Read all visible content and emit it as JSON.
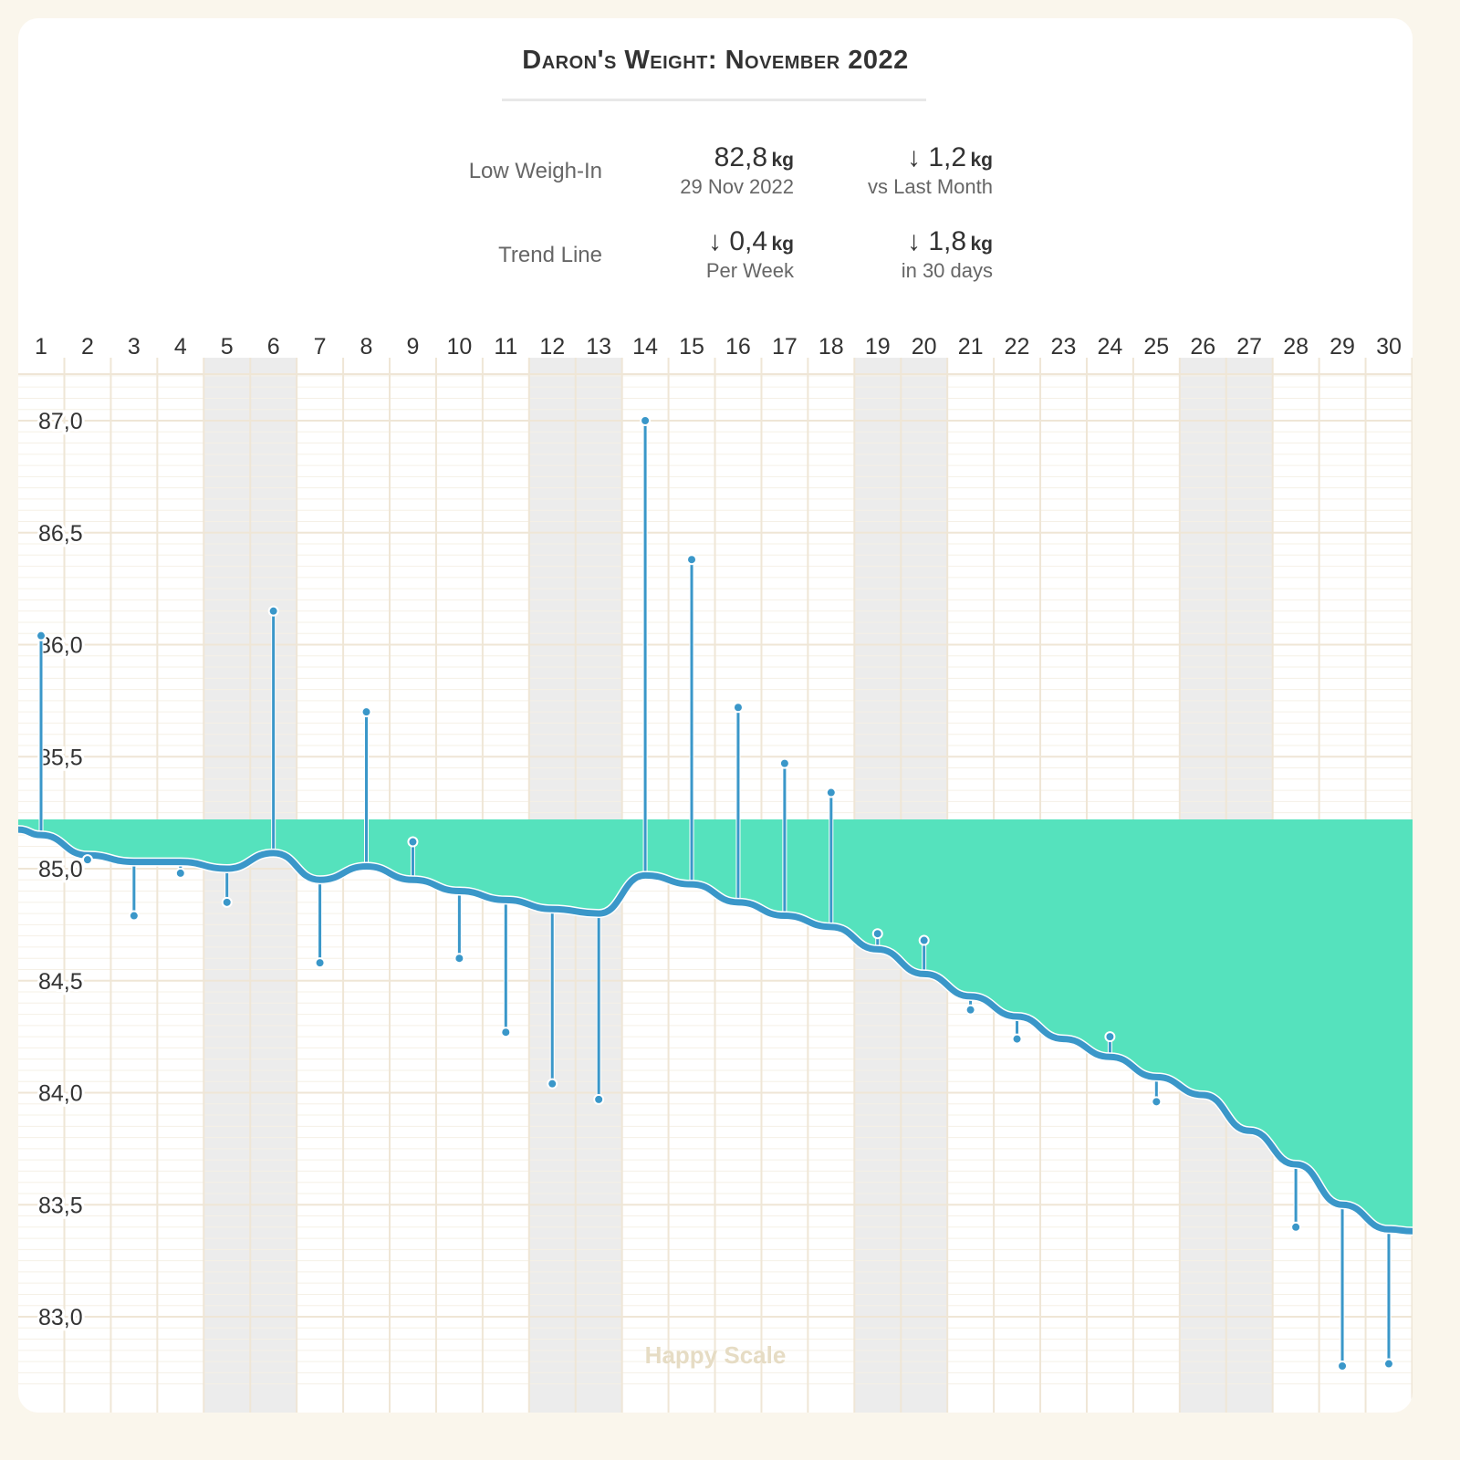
{
  "title": "Daron's Weight: November 2022",
  "stats": {
    "low_label": "Low Weigh-In",
    "low_value": "82,8",
    "low_unit": "kg",
    "low_date": "29 Nov 2022",
    "month_change": "↓ 1,2",
    "month_unit": "kg",
    "month_sub": "vs Last Month",
    "trend_label": "Trend Line",
    "week_value": "↓ 0,4",
    "week_unit": "kg",
    "week_sub": "Per Week",
    "days_value": "↓ 1,8",
    "days_unit": "kg",
    "days_sub": "in 30 days"
  },
  "watermark": "Happy Scale",
  "colors": {
    "trend": "#3a97c9",
    "fill": "#55e2bd",
    "weekend": "#ececec",
    "grid": "#efe6d6"
  },
  "chart_data": {
    "type": "line",
    "x": [
      1,
      2,
      3,
      4,
      5,
      6,
      7,
      8,
      9,
      10,
      11,
      12,
      13,
      14,
      15,
      16,
      17,
      18,
      19,
      20,
      21,
      22,
      23,
      24,
      25,
      26,
      27,
      28,
      29,
      30
    ],
    "x_tick_labels": [
      "1",
      "2",
      "3",
      "4",
      "5",
      "6",
      "7",
      "8",
      "9",
      "10",
      "11",
      "12",
      "13",
      "14",
      "15",
      "16",
      "17",
      "18",
      "19",
      "20",
      "21",
      "22",
      "23",
      "24",
      "25",
      "26",
      "27",
      "28",
      "29",
      "30"
    ],
    "y_tick_labels": [
      "87,0",
      "86,5",
      "86,0",
      "85,5",
      "85,0",
      "84,5",
      "84,0",
      "83,5",
      "83,0"
    ],
    "y_ticks": [
      87.0,
      86.5,
      86.0,
      85.5,
      85.0,
      84.5,
      84.0,
      83.5,
      83.0
    ],
    "ylim": [
      82.7,
      87.2
    ],
    "weekend_days": [
      5,
      6,
      12,
      13,
      19,
      20,
      26,
      27
    ],
    "fill_baseline": 85.22,
    "series": [
      {
        "role": "weigh-ins",
        "values": [
          86.04,
          85.04,
          84.79,
          84.98,
          84.85,
          86.15,
          84.58,
          85.7,
          85.12,
          84.6,
          84.27,
          84.04,
          83.97,
          87.0,
          86.38,
          85.72,
          85.47,
          85.34,
          84.71,
          84.68,
          84.37,
          84.24,
          null,
          84.25,
          83.96,
          null,
          null,
          83.4,
          82.78,
          82.79
        ]
      },
      {
        "role": "trend",
        "values": [
          85.15,
          85.06,
          85.03,
          85.03,
          85.0,
          85.07,
          84.95,
          85.01,
          84.95,
          84.9,
          84.86,
          84.82,
          84.8,
          84.97,
          84.93,
          84.85,
          84.79,
          84.74,
          84.64,
          84.53,
          84.43,
          84.34,
          84.24,
          84.16,
          84.07,
          83.99,
          83.83,
          83.68,
          83.5,
          83.39
        ]
      }
    ]
  }
}
